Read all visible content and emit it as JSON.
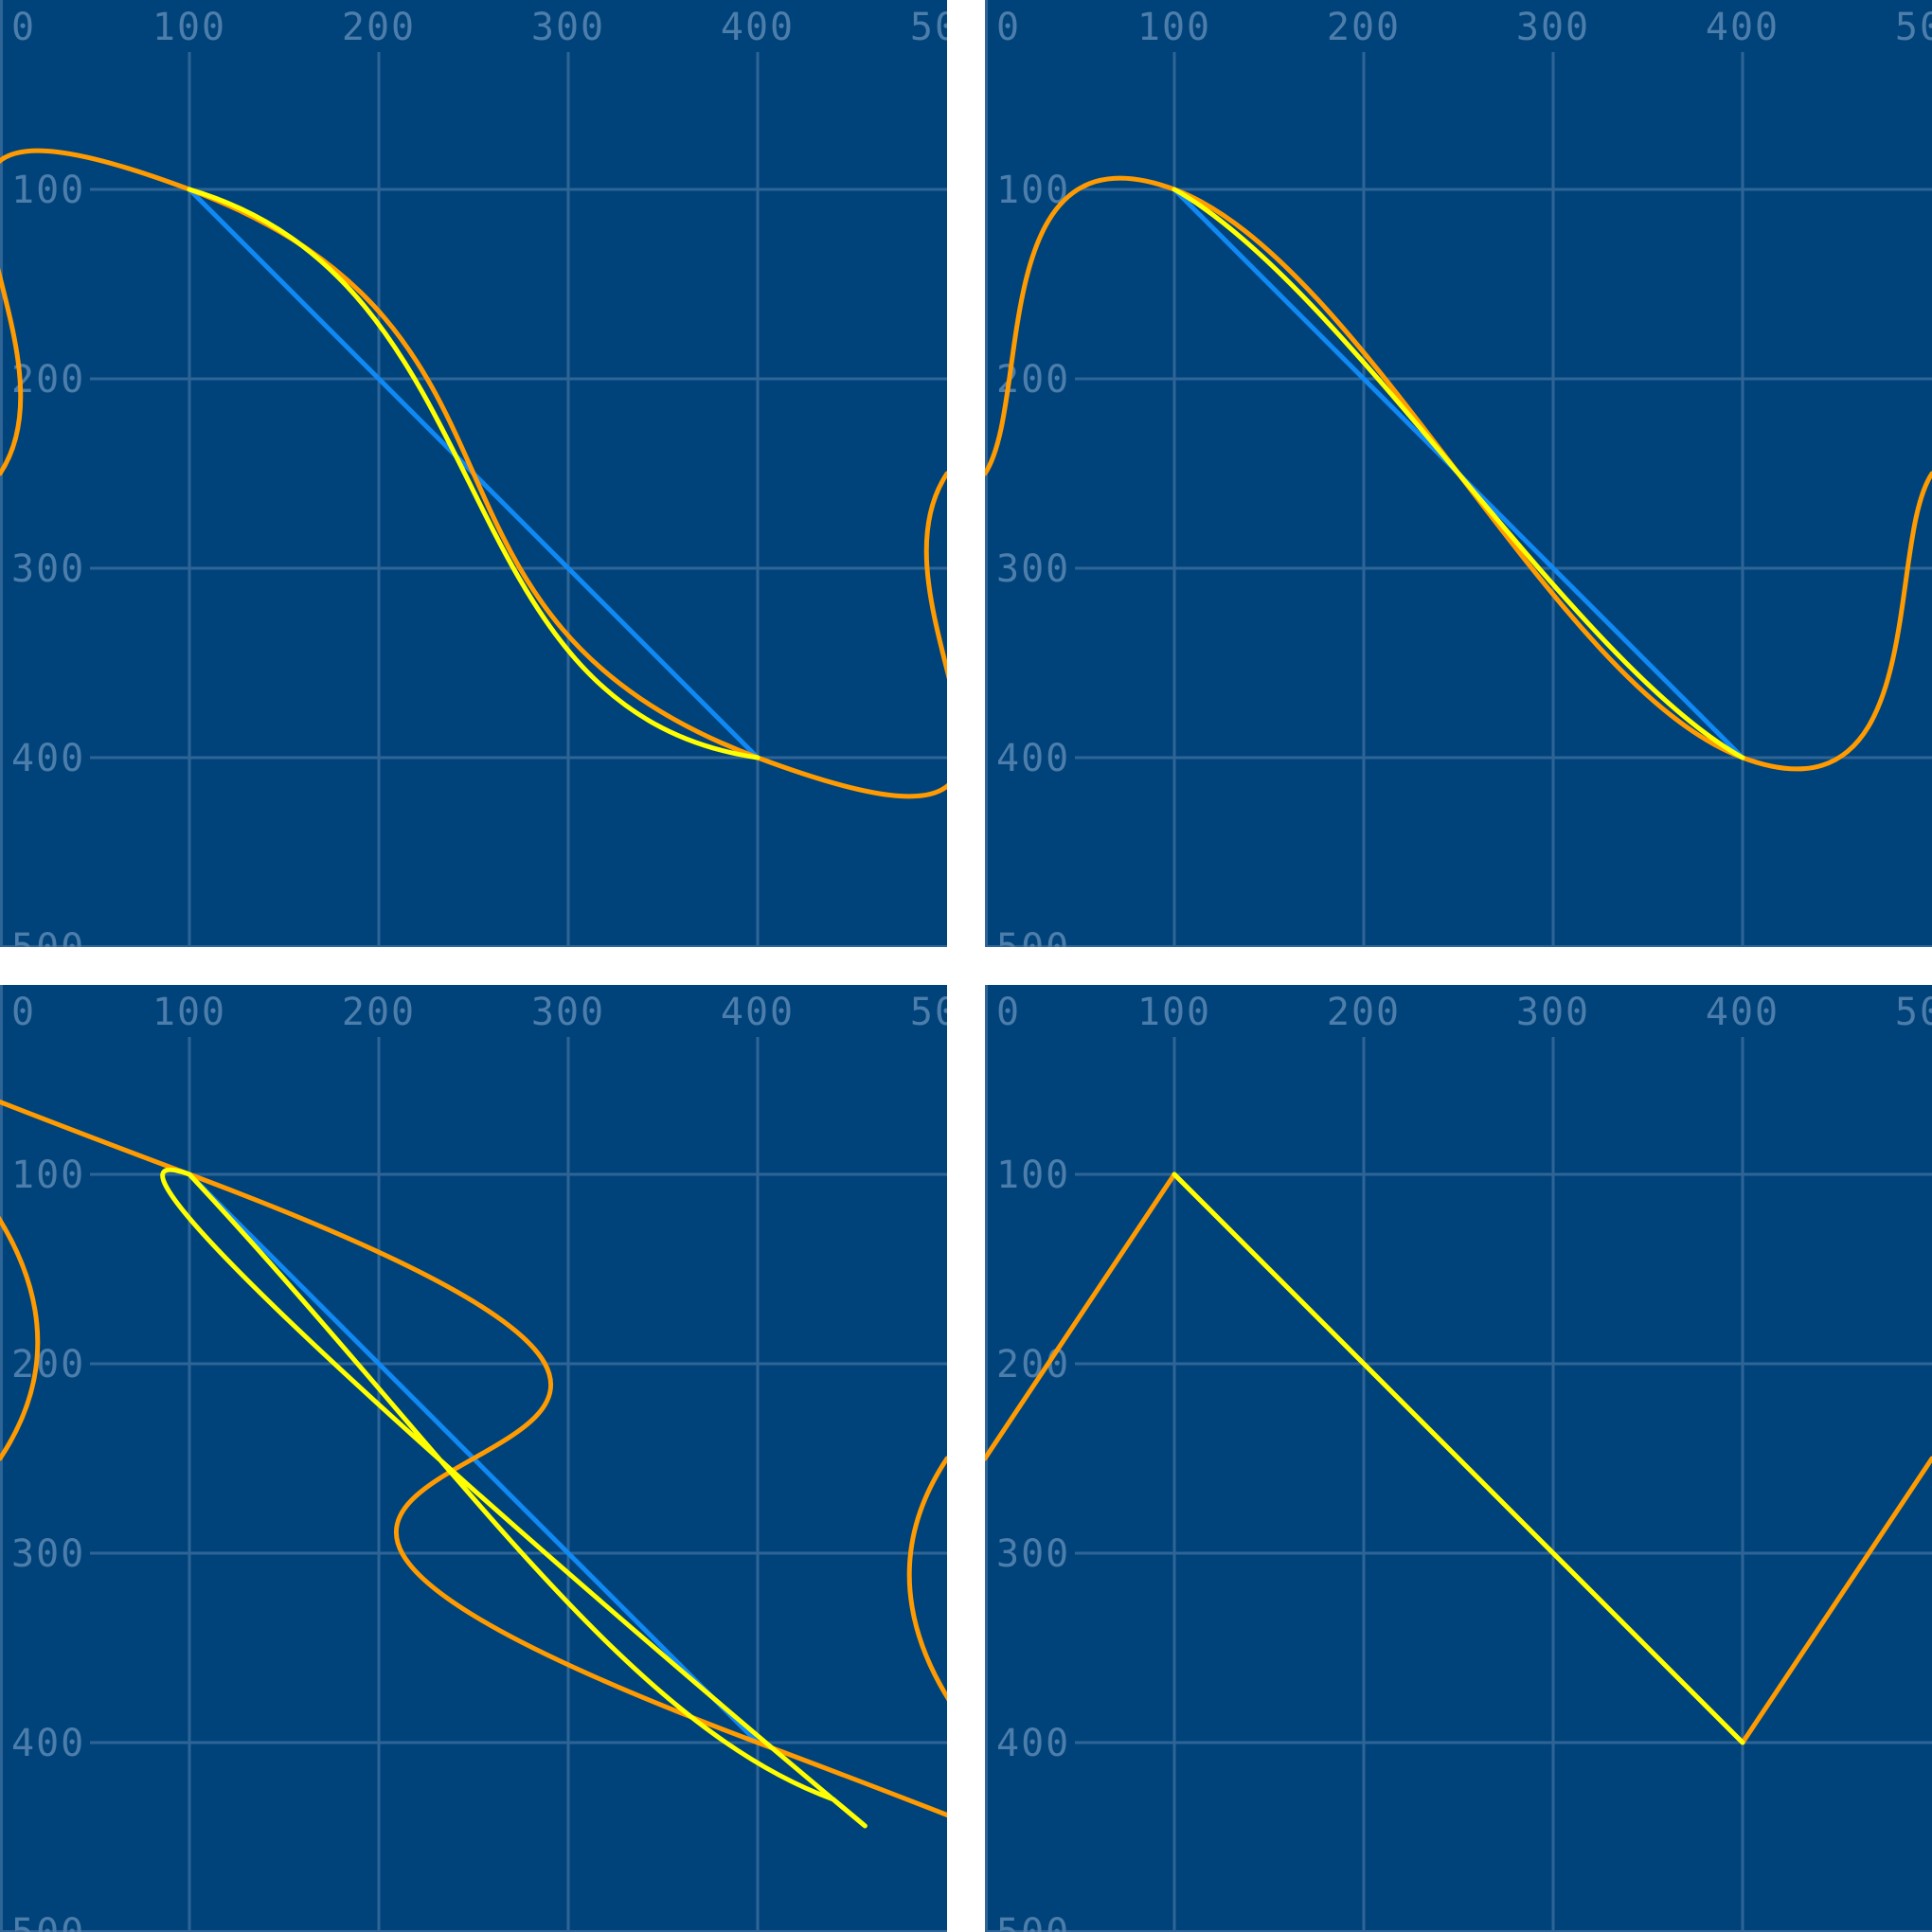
{
  "colors": {
    "background": "#00437a",
    "grid": "#2f6497",
    "tick_label": "#4d7eab",
    "blue_segment": "#1089f5",
    "orange_curve": "#ff9b00",
    "yellow_curve": "#ffff00"
  },
  "axes": {
    "x_ticks": [
      "0",
      "100",
      "200",
      "300",
      "400",
      "500"
    ],
    "y_ticks": [
      "100",
      "200",
      "300",
      "400",
      "500"
    ]
  },
  "panels": [
    {
      "id": "top-left",
      "blue_segment": [
        [
          100,
          100
        ],
        [
          400,
          400
        ]
      ],
      "orange_curve": [
        [
          0,
          250
        ],
        [
          100,
          100
        ],
        [
          400,
          400
        ],
        [
          500,
          250
        ]
      ],
      "orange_tension": 1.0,
      "yellow_curve": [
        [
          100,
          100
        ],
        [
          400,
          400
        ]
      ],
      "yellow_style": "smooth-s"
    },
    {
      "id": "top-right",
      "blue_segment": [
        [
          100,
          100
        ],
        [
          400,
          400
        ]
      ],
      "orange_curve": [
        [
          0,
          250
        ],
        [
          100,
          100
        ],
        [
          400,
          400
        ],
        [
          500,
          250
        ]
      ],
      "orange_tension": 0.5,
      "yellow_curve": [
        [
          100,
          100
        ],
        [
          400,
          400
        ]
      ],
      "yellow_style": "gentle-s"
    },
    {
      "id": "bottom-left",
      "blue_segment": [
        [
          100,
          100
        ],
        [
          400,
          400
        ]
      ],
      "orange_curve": [
        [
          0,
          250
        ],
        [
          100,
          100
        ],
        [
          400,
          400
        ],
        [
          500,
          250
        ]
      ],
      "orange_tension": 2.5,
      "yellow_curve": [
        [
          100,
          100
        ],
        [
          400,
          400
        ]
      ],
      "yellow_style": "loop"
    },
    {
      "id": "bottom-right",
      "blue_segment": [
        [
          100,
          100
        ],
        [
          400,
          400
        ]
      ],
      "orange_curve": [
        [
          0,
          250
        ],
        [
          100,
          100
        ],
        [
          400,
          400
        ],
        [
          500,
          250
        ]
      ],
      "orange_tension": 0,
      "yellow_curve": [
        [
          100,
          100
        ],
        [
          400,
          400
        ]
      ],
      "yellow_style": "straight"
    }
  ]
}
